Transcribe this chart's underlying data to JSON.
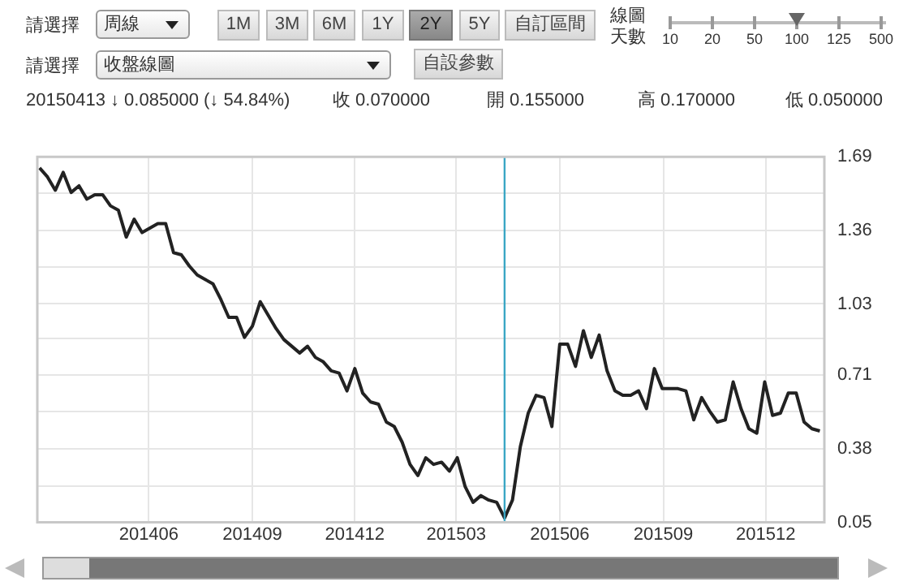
{
  "chart_data": {
    "type": "line",
    "annotations": [
      "請選擇",
      "周線",
      "1M",
      "3M",
      "6M",
      "1Y",
      "2Y",
      "5Y",
      "自訂區間",
      "線圖",
      "天數",
      "10",
      "20",
      "50",
      "100",
      "125",
      "500",
      "請選擇",
      "收盤線圖",
      "自設參數",
      "20150413  ↓ 0.085000 (↓ 54.84%)",
      "收 0.070000",
      "開 0.155000",
      "高 0.170000",
      "低 0.050000"
    ],
    "x": [
      "2014-02-24",
      "2014-03-03",
      "2014-03-10",
      "2014-03-17",
      "2014-03-24",
      "2014-03-31",
      "2014-04-07",
      "2014-04-14",
      "2014-04-21",
      "2014-04-28",
      "2014-05-05",
      "2014-05-12",
      "2014-05-19",
      "2014-05-26",
      "2014-06-02",
      "2014-06-09",
      "2014-06-16",
      "2014-06-23",
      "2014-06-30",
      "2014-07-07",
      "2014-07-14",
      "2014-07-21",
      "2014-07-28",
      "2014-08-04",
      "2014-08-11",
      "2014-08-18",
      "2014-08-25",
      "2014-09-01",
      "2014-09-08",
      "2014-09-15",
      "2014-09-22",
      "2014-09-29",
      "2014-10-06",
      "2014-10-13",
      "2014-10-20",
      "2014-10-27",
      "2014-11-03",
      "2014-11-10",
      "2014-11-17",
      "2014-11-24",
      "2014-12-01",
      "2014-12-08",
      "2014-12-15",
      "2014-12-22",
      "2014-12-29",
      "2015-01-05",
      "2015-01-12",
      "2015-01-19",
      "2015-01-26",
      "2015-02-02",
      "2015-02-09",
      "2015-02-16",
      "2015-02-23",
      "2015-03-02",
      "2015-03-09",
      "2015-03-16",
      "2015-03-23",
      "2015-03-30",
      "2015-04-06",
      "2015-04-13",
      "2015-04-20",
      "2015-04-27",
      "2015-05-04",
      "2015-05-11",
      "2015-05-18",
      "2015-05-25",
      "2015-06-01",
      "2015-06-08",
      "2015-06-15",
      "2015-06-22",
      "2015-06-29",
      "2015-07-06",
      "2015-07-13",
      "2015-07-20",
      "2015-07-27",
      "2015-08-03",
      "2015-08-10",
      "2015-08-17",
      "2015-08-24",
      "2015-08-31",
      "2015-09-07",
      "2015-09-14",
      "2015-09-21",
      "2015-09-28",
      "2015-10-05",
      "2015-10-12",
      "2015-10-19",
      "2015-10-26",
      "2015-11-02",
      "2015-11-09",
      "2015-11-16",
      "2015-11-23",
      "2015-11-30",
      "2015-12-07",
      "2015-12-14",
      "2015-12-21",
      "2015-12-28",
      "2016-01-04",
      "2016-01-11",
      "2016-01-18"
    ],
    "series": [
      {
        "color": "#222222",
        "values": [
          1.64,
          1.6,
          1.54,
          1.62,
          1.53,
          1.56,
          1.5,
          1.52,
          1.52,
          1.47,
          1.45,
          1.33,
          1.41,
          1.35,
          1.37,
          1.39,
          1.39,
          1.26,
          1.25,
          1.2,
          1.16,
          1.14,
          1.12,
          1.05,
          0.97,
          0.97,
          0.88,
          0.93,
          1.04,
          0.98,
          0.92,
          0.87,
          0.84,
          0.81,
          0.84,
          0.79,
          0.77,
          0.73,
          0.72,
          0.64,
          0.74,
          0.63,
          0.59,
          0.58,
          0.5,
          0.48,
          0.41,
          0.31,
          0.26,
          0.34,
          0.31,
          0.32,
          0.28,
          0.34,
          0.21,
          0.14,
          0.17,
          0.15,
          0.14,
          0.07,
          0.15,
          0.39,
          0.54,
          0.62,
          0.61,
          0.48,
          0.85,
          0.85,
          0.75,
          0.91,
          0.79,
          0.89,
          0.73,
          0.64,
          0.62,
          0.62,
          0.64,
          0.56,
          0.74,
          0.65,
          0.65,
          0.65,
          0.64,
          0.51,
          0.61,
          0.55,
          0.5,
          0.51,
          0.68,
          0.56,
          0.47,
          0.45,
          0.68,
          0.53,
          0.54,
          0.63,
          0.63,
          0.5,
          0.47,
          0.46
        ]
      }
    ],
    "xlim": [
      "2014-02-22",
      "2016-01-22"
    ],
    "xticks": [
      {
        "value": "2014-06-01",
        "label": "201406"
      },
      {
        "value": "2014-09-01",
        "label": "201409"
      },
      {
        "value": "2014-12-01",
        "label": "201412"
      },
      {
        "value": "2015-03-01",
        "label": "201503"
      },
      {
        "value": "2015-06-01",
        "label": "201506"
      },
      {
        "value": "2015-09-01",
        "label": "201509"
      },
      {
        "value": "2015-12-01",
        "label": "201512"
      }
    ],
    "ylim": [
      0.05,
      1.69
    ],
    "yticks": [
      0.05,
      {
        "value": 0.214,
        "label": null
      },
      0.38,
      {
        "value": 0.546,
        "label": null
      },
      0.71,
      {
        "value": 0.874,
        "label": null
      },
      1.03,
      {
        "value": 1.196,
        "label": null
      },
      1.36,
      {
        "value": 1.526,
        "label": null
      },
      1.69
    ],
    "ref_lines": [
      {
        "axis": "x",
        "value": "2015-04-13",
        "color": "#3aa6c4"
      }
    ],
    "grid": true,
    "legend": false,
    "marker": "none",
    "line_style": "solid"
  }
}
